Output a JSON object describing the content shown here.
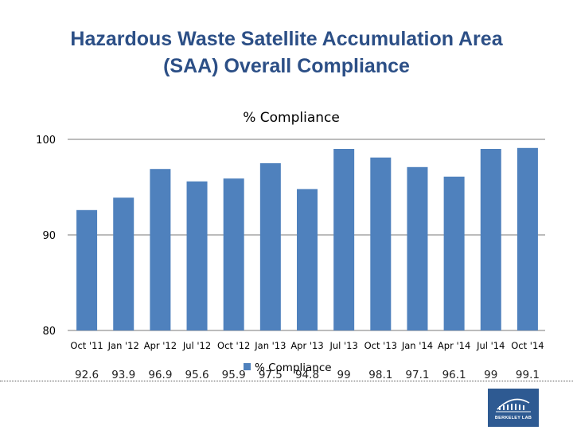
{
  "title_lines": [
    "Hazardous Waste Satellite Accumulation Area",
    "(SAA) Overall Compliance"
  ],
  "colors": {
    "bar": "#4f81bd",
    "title": "#2c4f86",
    "grid": "#a6a6a6"
  },
  "logo": {
    "text": "BERKELEY LAB",
    "icon": "berkeley-lab-logo-icon"
  },
  "chart_data": {
    "type": "bar",
    "title": "% Compliance",
    "categories": [
      "Oct '11",
      "Jan '12",
      "Apr '12",
      "Jul '12",
      "Oct '12",
      "Jan '13",
      "Apr '13",
      "Jul '13",
      "Oct '13",
      "Jan '14",
      "Apr '14",
      "Jul '14",
      "Oct '14"
    ],
    "series": [
      {
        "name": "% Compliance",
        "values": [
          92.6,
          93.9,
          96.9,
          95.6,
          95.9,
          97.5,
          94.8,
          99,
          98.1,
          97.1,
          96.1,
          99,
          99.1
        ]
      }
    ],
    "value_labels": [
      "92.6",
      "93.9",
      "96.9",
      "95.6",
      "95.9",
      "97.5",
      "94.8",
      "99",
      "98.1",
      "97.1",
      "96.1",
      "99",
      "99.1"
    ],
    "ylim": [
      80,
      100
    ],
    "yticks": [
      "80",
      "90",
      "100"
    ],
    "grid": true,
    "legend": "bottom",
    "xlabel": "",
    "ylabel": ""
  }
}
